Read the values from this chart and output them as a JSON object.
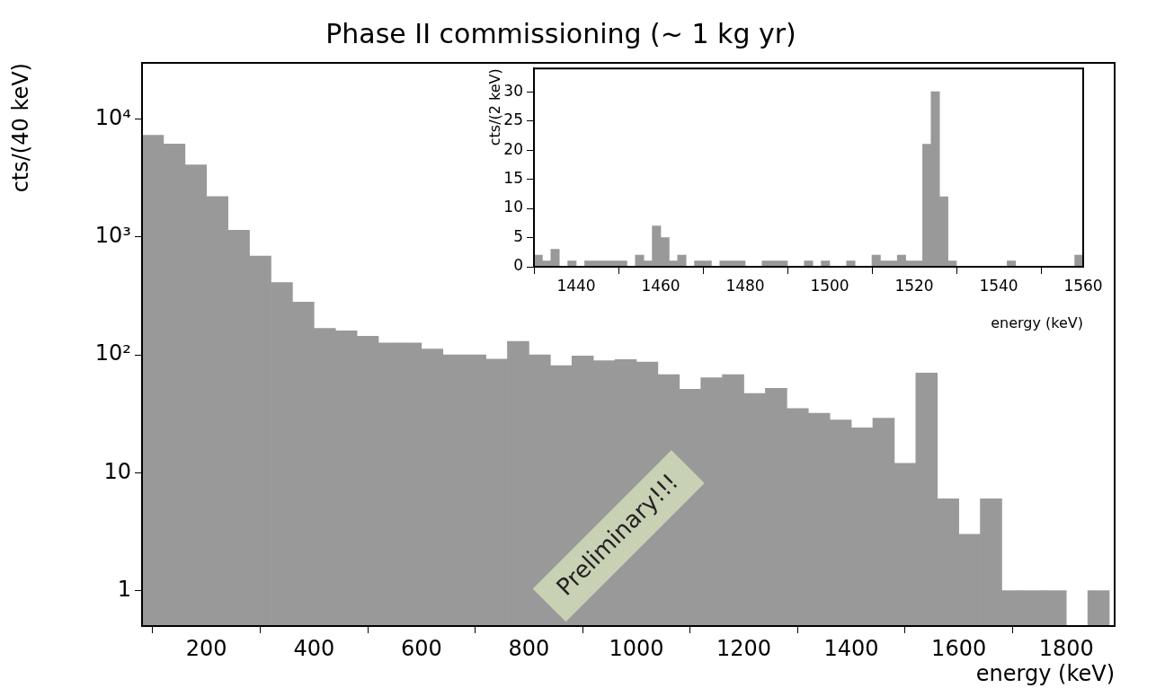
{
  "chart_data": [
    {
      "type": "histogram",
      "title": "Phase II commissioning (~ 1 kg yr)",
      "xlabel": "energy (keV)",
      "ylabel": "cts/(40 keV)",
      "log": true,
      "color": "#999999",
      "bins": [
        80,
        120,
        160,
        200,
        240,
        280,
        320,
        360,
        400,
        440,
        480,
        520,
        560,
        600,
        640,
        680,
        720,
        760,
        800,
        840,
        880,
        920,
        960,
        1000,
        1040,
        1080,
        1120,
        1160,
        1200,
        1240,
        1280,
        1320,
        1360,
        1400,
        1440,
        1480,
        1520,
        1560,
        1600,
        1640,
        1680,
        1720,
        1760,
        1800,
        1840,
        1880
      ],
      "values": [
        7300,
        6150,
        4080,
        2200,
        1140,
        690,
        410,
        280,
        168,
        160,
        144,
        126,
        126,
        112,
        100,
        100,
        92,
        130,
        100,
        81,
        98,
        89,
        91,
        87,
        68,
        51,
        64,
        68,
        47,
        52,
        35,
        32,
        28,
        24,
        29,
        12,
        70,
        6,
        3,
        6,
        1,
        1,
        1,
        null,
        1
      ],
      "xlim": [
        80,
        1890
      ],
      "xticks": [
        200,
        400,
        600,
        800,
        1000,
        1200,
        1400,
        1600,
        1800
      ],
      "ylim": [
        0.5,
        30000
      ],
      "yticks": [
        {
          "value": 1,
          "label": "1"
        },
        {
          "value": 10,
          "label": "10"
        },
        {
          "value": 100,
          "label": "10²"
        },
        {
          "value": 1000,
          "label": "10³"
        },
        {
          "value": 10000,
          "label": "10⁴"
        }
      ],
      "annotations": [
        "Preliminary!!!"
      ]
    },
    {
      "type": "histogram",
      "xlabel": "energy (keV)",
      "ylabel": "cts/(2 keV)",
      "color": "#999999",
      "bins": [
        1430,
        1432,
        1434,
        1436,
        1438,
        1440,
        1442,
        1444,
        1446,
        1448,
        1450,
        1452,
        1454,
        1456,
        1458,
        1460,
        1462,
        1464,
        1466,
        1468,
        1470,
        1472,
        1474,
        1476,
        1478,
        1480,
        1482,
        1484,
        1486,
        1488,
        1490,
        1492,
        1494,
        1496,
        1498,
        1500,
        1502,
        1504,
        1506,
        1508,
        1510,
        1512,
        1514,
        1516,
        1518,
        1520,
        1522,
        1524,
        1526,
        1528,
        1530,
        1532,
        1534,
        1536,
        1538,
        1540,
        1542,
        1544,
        1546,
        1548,
        1550,
        1552,
        1554,
        1556,
        1558,
        1560
      ],
      "values": [
        2,
        1,
        3,
        0,
        1,
        0,
        1,
        1,
        1,
        1,
        1,
        0,
        2,
        1,
        7,
        5,
        1,
        2,
        0,
        1,
        1,
        0,
        1,
        1,
        1,
        0,
        0,
        1,
        1,
        1,
        0,
        0,
        1,
        0,
        1,
        0,
        0,
        1,
        0,
        0,
        2,
        1,
        1,
        2,
        1,
        1,
        21,
        30,
        12,
        1,
        0,
        0,
        0,
        0,
        0,
        0,
        1,
        0,
        0,
        0,
        0,
        0,
        0,
        0,
        2
      ],
      "xlim": [
        1430,
        1560
      ],
      "xticks": [
        1440,
        1460,
        1480,
        1500,
        1520,
        1540,
        1560
      ],
      "ylim": [
        0,
        34
      ],
      "yticks": [
        0,
        5,
        10,
        15,
        20,
        25,
        30
      ]
    }
  ]
}
